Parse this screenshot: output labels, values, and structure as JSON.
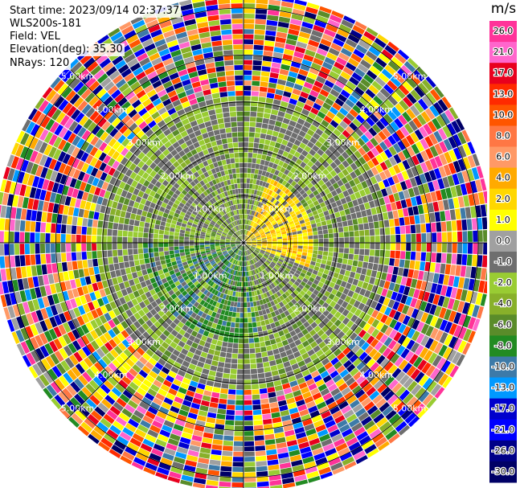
{
  "header": {
    "start_time": "Start time: 2023/09/14 02:37:37",
    "instrument": "WLS200s-181",
    "field": "Field: VEL",
    "elevation": "Elevation(deg): 35.30",
    "nrays": "NRays: 120"
  },
  "range_rings": [
    {
      "km": 1,
      "label": "1.00km"
    },
    {
      "km": 2,
      "label": "2.00km"
    },
    {
      "km": 3,
      "label": "3.00km"
    },
    {
      "km": 4,
      "label": "4.00km"
    },
    {
      "km": 5,
      "label": "5.00km"
    }
  ],
  "max_range_km": 5.3,
  "n_rays": 120,
  "colorbar": {
    "unit": "m/s",
    "ticks": [
      "26.0",
      "21.0",
      "17.0",
      "13.0",
      "10.0",
      "8.0",
      "6.0",
      "4.0",
      "2.0",
      "1.0",
      "0.0",
      "-1.0",
      "-2.0",
      "-4.0",
      "-6.0",
      "-8.0",
      "-10.0",
      "-13.0",
      "-17.0",
      "-21.0",
      "-26.0",
      "-30.0"
    ],
    "bins": [
      {
        "range": "26..30",
        "color": "#ff3399"
      },
      {
        "range": "21..26",
        "color": "#ff66cc"
      },
      {
        "range": "17..21",
        "color": "#e8001e"
      },
      {
        "range": "13..17",
        "color": "#ff2a00"
      },
      {
        "range": "10..13",
        "color": "#ff5500"
      },
      {
        "range": "8..10",
        "color": "#ff7744"
      },
      {
        "range": "6..8",
        "color": "#ff9966"
      },
      {
        "range": "4..6",
        "color": "#ffaa00"
      },
      {
        "range": "2..4",
        "color": "#ffd700"
      },
      {
        "range": "1..2",
        "color": "#ffff00"
      },
      {
        "range": "0..1",
        "color": "#a0a0a0"
      },
      {
        "range": "-1..0",
        "color": "#6e6e6e"
      },
      {
        "range": "-2..-1",
        "color": "#99cc33"
      },
      {
        "range": "-4..-2",
        "color": "#88b02a"
      },
      {
        "range": "-6..-4",
        "color": "#5a8c2a"
      },
      {
        "range": "-8..-6",
        "color": "#228b22"
      },
      {
        "range": "-10..-8",
        "color": "#3d7aa8"
      },
      {
        "range": "-13..-10",
        "color": "#0099ff"
      },
      {
        "range": "-17..-13",
        "color": "#0000cc"
      },
      {
        "range": "-21..-17",
        "color": "#0000ff"
      },
      {
        "range": "-26..-21",
        "color": "#000088"
      },
      {
        "range": "-30..-26",
        "color": "#000066"
      }
    ]
  }
}
